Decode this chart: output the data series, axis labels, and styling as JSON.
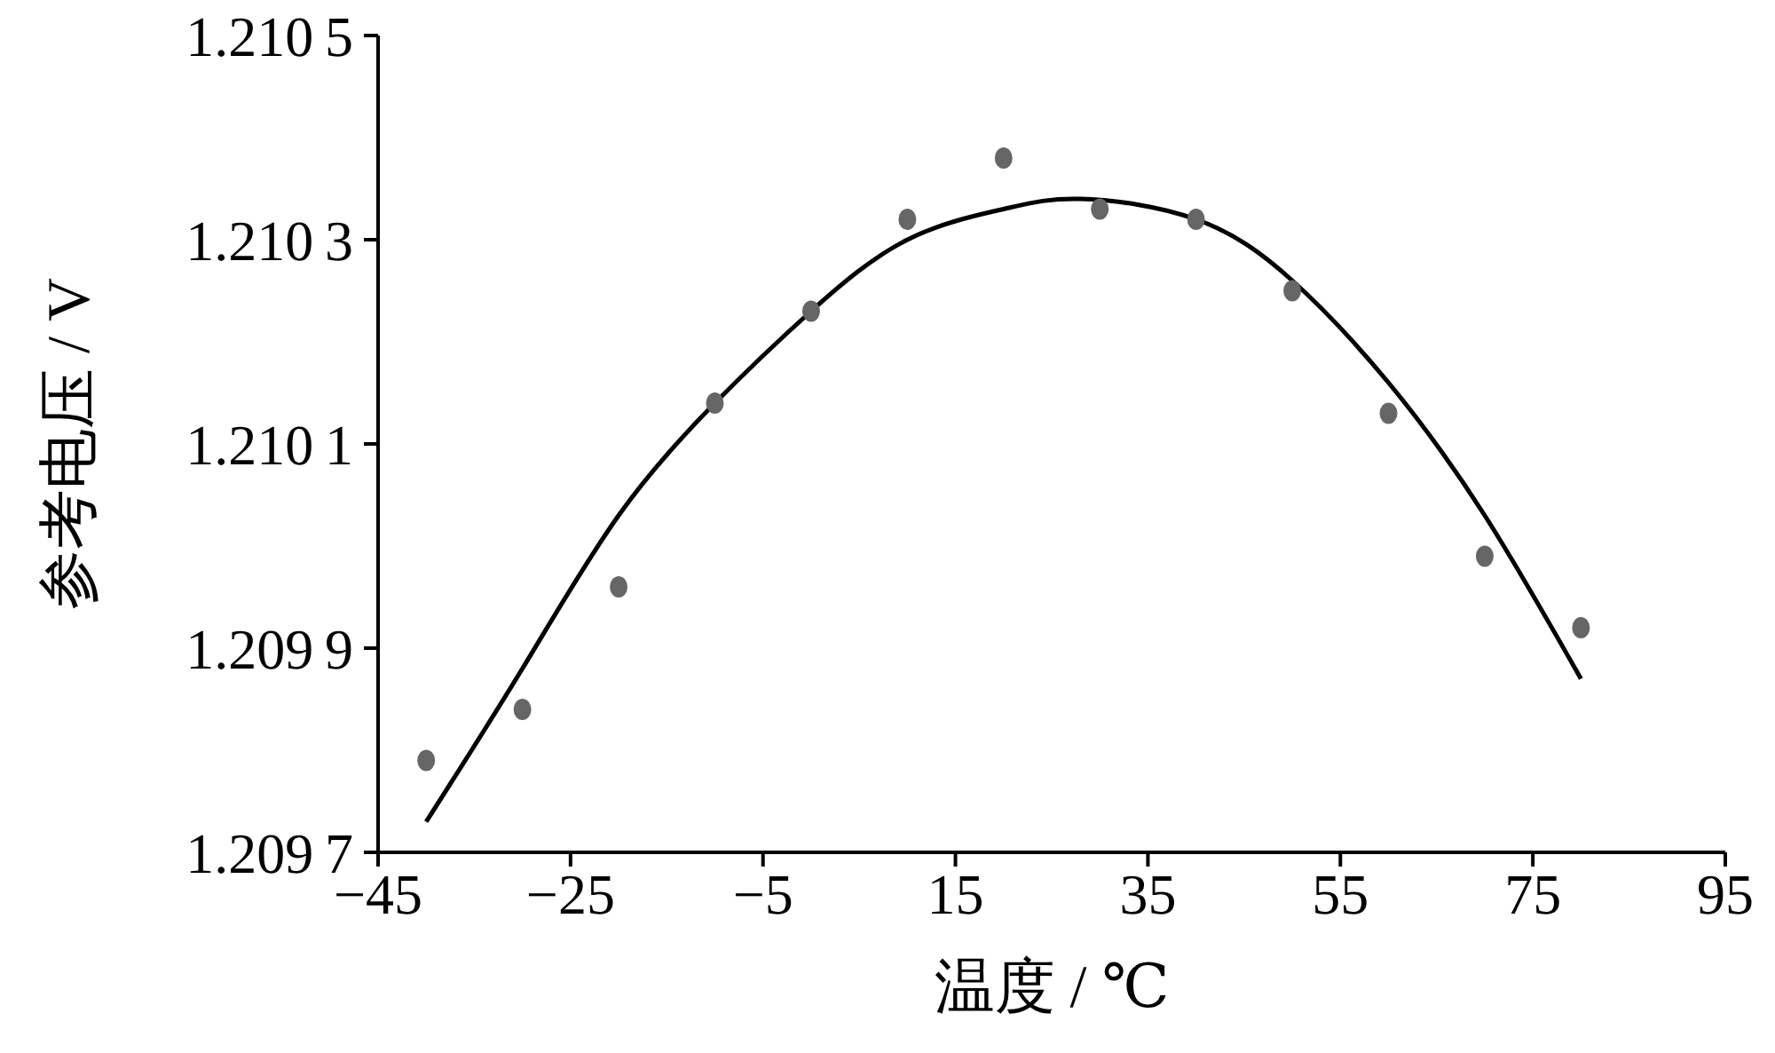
{
  "chart_data": {
    "type": "scatter",
    "xlabel": "温度 / ℃",
    "ylabel": "参考电压 / V",
    "grid": false,
    "legend": false,
    "marker": "circle",
    "xlim": [
      -45,
      95
    ],
    "xticks": [
      {
        "value": -45,
        "label": "−45"
      },
      {
        "value": -25,
        "label": "−25"
      },
      {
        "value": -5,
        "label": "−5"
      },
      15,
      35,
      55,
      75,
      95
    ],
    "ylim": [
      1.2097,
      1.2105
    ],
    "yticks": [
      1.2097,
      1.2099,
      1.2101,
      1.2103,
      1.2105
    ],
    "series": [
      {
        "color": "#666666",
        "x": [
          -40,
          -30,
          -20,
          -10,
          0,
          10,
          20,
          30,
          40,
          50,
          60,
          70,
          80
        ],
        "values": [
          1.20979,
          1.20984,
          1.20996,
          1.21014,
          1.21023,
          1.21032,
          1.21038,
          1.21033,
          1.21032,
          1.21025,
          1.21013,
          1.20999,
          1.20992
        ]
      },
      {
        "type": "line",
        "color": "#000000",
        "marker": "none",
        "line_style": "solid",
        "x": [
          -40,
          -30,
          -20,
          -10,
          0,
          10,
          20,
          28,
          40,
          50,
          60,
          70,
          80
        ],
        "values": [
          1.20973,
          1.20988,
          1.21003,
          1.21014,
          1.21023,
          1.2103,
          1.21033,
          1.21034,
          1.21032,
          1.21026,
          1.21016,
          1.21003,
          1.20987
        ]
      }
    ]
  }
}
